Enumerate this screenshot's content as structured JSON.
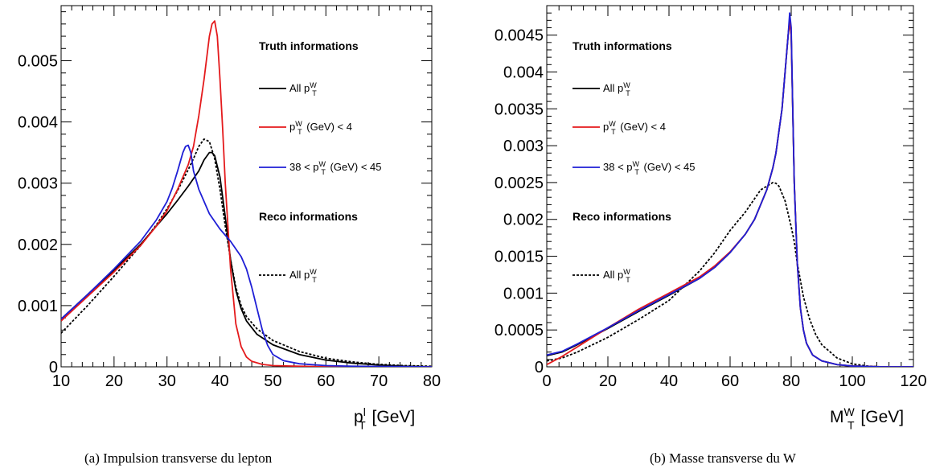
{
  "chart_data": [
    {
      "type": "line",
      "caption": "(a)   Impulsion transverse du lepton",
      "xlabel_main": "p",
      "xlabel_sup": "l",
      "xlabel_sub": "T",
      "xlabel_unit": " [GeV]",
      "xlim": [
        10,
        80
      ],
      "ylim": [
        0,
        0.0059
      ],
      "xticks": [
        10,
        20,
        30,
        40,
        50,
        60,
        70,
        80
      ],
      "yticks": [
        0,
        0.001,
        0.002,
        0.003,
        0.004,
        0.005
      ],
      "ytick_labels": [
        "0",
        "0.001",
        "0.002",
        "0.003",
        "0.004",
        "0.005"
      ],
      "legend_truth_header": "Truth informations",
      "legend_reco_header": "Reco informations",
      "series": [
        {
          "name_pre": "All p",
          "name_sup": "W",
          "name_sub": "T",
          "name_post": "",
          "color": "#000000",
          "style": "solid",
          "group": "truth",
          "x": [
            10,
            15,
            20,
            25,
            28,
            30,
            32,
            34,
            36,
            37,
            38,
            38.5,
            39,
            40,
            41,
            42,
            43,
            44,
            45,
            47,
            50,
            55,
            60,
            65,
            70,
            75,
            80
          ],
          "y": [
            0.00078,
            0.00118,
            0.00158,
            0.002,
            0.0023,
            0.0025,
            0.00272,
            0.00295,
            0.0032,
            0.00338,
            0.0035,
            0.0035,
            0.00345,
            0.0031,
            0.00245,
            0.00175,
            0.00125,
            0.00095,
            0.00075,
            0.00053,
            0.00036,
            0.0002,
            0.00011,
            6e-05,
            3e-05,
            1e-05,
            0.0
          ]
        },
        {
          "name_pre": "p",
          "name_sup": "W",
          "name_sub": "T",
          "name_post": " (GeV) < 4",
          "color": "#e41a1c",
          "style": "solid",
          "group": "truth",
          "x": [
            10,
            15,
            20,
            25,
            28,
            30,
            32,
            34,
            35,
            36,
            37,
            38,
            38.5,
            39,
            39.5,
            40,
            40.5,
            41,
            42,
            43,
            44,
            45,
            46,
            48,
            50,
            55,
            60,
            80
          ],
          "y": [
            0.00075,
            0.00115,
            0.00155,
            0.00198,
            0.0023,
            0.00255,
            0.0029,
            0.0033,
            0.0036,
            0.0041,
            0.0047,
            0.0054,
            0.0056,
            0.00565,
            0.0054,
            0.0047,
            0.0039,
            0.003,
            0.0016,
            0.0007,
            0.00033,
            0.00016,
            9e-05,
            4e-05,
            2e-05,
            1e-05,
            0.0,
            0.0
          ]
        },
        {
          "name_pre": "38 < p",
          "name_sup": "W",
          "name_sub": "T",
          "name_post": " (GeV) < 45",
          "color": "#1f1fd6",
          "style": "solid",
          "group": "truth",
          "x": [
            10,
            15,
            20,
            25,
            28,
            30,
            31,
            32,
            33,
            33.5,
            34,
            34.5,
            35,
            36,
            37,
            38,
            40,
            42,
            44,
            45,
            46,
            47,
            48,
            49,
            50,
            52,
            55,
            60,
            65,
            80
          ],
          "y": [
            0.00078,
            0.00118,
            0.0016,
            0.00205,
            0.0024,
            0.0027,
            0.00292,
            0.0032,
            0.0035,
            0.0036,
            0.00362,
            0.0035,
            0.0032,
            0.0029,
            0.0027,
            0.0025,
            0.00225,
            0.00205,
            0.0018,
            0.0016,
            0.0013,
            0.00095,
            0.0006,
            0.00035,
            0.0002,
            0.0001,
            5e-05,
            2e-05,
            1e-05,
            0.0
          ]
        },
        {
          "name_pre": "All p",
          "name_sup": "W",
          "name_sub": "T",
          "name_post": "",
          "color": "#000000",
          "style": "dashed",
          "group": "reco",
          "x": [
            10,
            15,
            20,
            25,
            28,
            30,
            32,
            34,
            35,
            36,
            37,
            38,
            39,
            40,
            41,
            42,
            43,
            44,
            45,
            47,
            50,
            55,
            60,
            65,
            70,
            75,
            80
          ],
          "y": [
            0.00055,
            0.001,
            0.00148,
            0.00198,
            0.00232,
            0.00258,
            0.00288,
            0.00322,
            0.0034,
            0.0036,
            0.00372,
            0.00368,
            0.0034,
            0.0029,
            0.0023,
            0.00175,
            0.0013,
            0.001,
            0.00082,
            0.00062,
            0.00043,
            0.00025,
            0.00014,
            8e-05,
            4e-05,
            2e-05,
            1e-05
          ]
        }
      ]
    },
    {
      "type": "line",
      "caption": "(b)   Masse transverse du W",
      "xlabel_main": "M",
      "xlabel_sup": "W",
      "xlabel_sub": "T",
      "xlabel_unit": " [GeV]",
      "xlim": [
        0,
        120
      ],
      "ylim": [
        0,
        0.0049
      ],
      "xticks": [
        0,
        20,
        40,
        60,
        80,
        100,
        120
      ],
      "yticks": [
        0,
        0.0005,
        0.001,
        0.0015,
        0.002,
        0.0025,
        0.003,
        0.0035,
        0.004,
        0.0045
      ],
      "ytick_labels": [
        "0",
        "0.0005",
        "0.001",
        "0.0015",
        "0.002",
        "0.0025",
        "0.003",
        "0.0035",
        "0.004",
        "0.0045"
      ],
      "legend_truth_header": "Truth informations",
      "legend_reco_header": "Reco informations",
      "series": [
        {
          "name_pre": "All p",
          "name_sup": "W",
          "name_sub": "T",
          "name_post": "",
          "color": "#000000",
          "style": "solid",
          "group": "truth",
          "x": [
            0,
            5,
            10,
            20,
            30,
            40,
            50,
            55,
            60,
            65,
            68,
            70,
            72,
            74,
            75,
            76,
            77,
            78,
            79,
            79.5,
            80,
            80.5,
            81,
            82,
            83,
            84,
            85,
            87,
            90,
            95,
            100,
            110,
            120
          ],
          "y": [
            0.00015,
            0.0002,
            0.0003,
            0.00052,
            0.00075,
            0.00097,
            0.0012,
            0.00135,
            0.00155,
            0.0018,
            0.002,
            0.0022,
            0.0024,
            0.0027,
            0.0029,
            0.0032,
            0.0035,
            0.004,
            0.0045,
            0.0047,
            0.0045,
            0.0035,
            0.0025,
            0.0014,
            0.0008,
            0.0005,
            0.00032,
            0.00016,
            8e-05,
            3e-05,
            1e-05,
            0.0,
            0.0
          ]
        },
        {
          "name_pre": "p",
          "name_sup": "W",
          "name_sub": "T",
          "name_post": " (GeV) < 4",
          "color": "#e41a1c",
          "style": "solid",
          "group": "truth",
          "x": [
            0,
            5,
            10,
            20,
            30,
            40,
            50,
            55,
            60,
            65,
            68,
            70,
            72,
            74,
            75,
            76,
            77,
            78,
            79,
            79.5,
            80,
            80.5,
            81,
            82,
            83,
            84,
            85,
            87,
            90,
            95,
            100,
            110,
            120
          ],
          "y": [
            3e-05,
            0.00014,
            0.00027,
            0.00053,
            0.00078,
            0.001,
            0.00122,
            0.00137,
            0.00156,
            0.0018,
            0.002,
            0.0022,
            0.0024,
            0.0027,
            0.0029,
            0.0032,
            0.0035,
            0.004,
            0.0045,
            0.00468,
            0.0045,
            0.0035,
            0.0025,
            0.0014,
            0.0008,
            0.0005,
            0.00032,
            0.00016,
            8e-05,
            3e-05,
            1e-05,
            0.0,
            0.0
          ]
        },
        {
          "name_pre": "38 < p",
          "name_sup": "W",
          "name_sub": "T",
          "name_post": " (GeV) < 45",
          "color": "#1f1fd6",
          "style": "solid",
          "group": "truth",
          "x": [
            0,
            5,
            10,
            20,
            30,
            40,
            50,
            55,
            60,
            65,
            68,
            70,
            72,
            74,
            75,
            76,
            77,
            78,
            79,
            79.5,
            80,
            80.5,
            81,
            82,
            83,
            84,
            85,
            87,
            90,
            95,
            100,
            110,
            120
          ],
          "y": [
            0.00016,
            0.00021,
            0.00031,
            0.00053,
            0.00076,
            0.00098,
            0.0012,
            0.00135,
            0.00155,
            0.0018,
            0.002,
            0.0022,
            0.0024,
            0.0027,
            0.0029,
            0.0032,
            0.0035,
            0.004,
            0.0045,
            0.0048,
            0.0046,
            0.0035,
            0.0025,
            0.0014,
            0.0008,
            0.0005,
            0.00032,
            0.00016,
            8e-05,
            3e-05,
            1e-05,
            0.0,
            0.0
          ]
        },
        {
          "name_pre": "All p",
          "name_sup": "W",
          "name_sub": "T",
          "name_post": "",
          "color": "#000000",
          "style": "dashed",
          "group": "reco",
          "x": [
            0,
            5,
            10,
            20,
            30,
            40,
            50,
            55,
            60,
            65,
            70,
            72,
            74,
            75,
            76,
            78,
            80,
            81,
            82,
            84,
            86,
            88,
            90,
            95,
            100,
            105,
            110,
            120
          ],
          "y": [
            8e-05,
            0.00012,
            0.0002,
            0.0004,
            0.00064,
            0.0009,
            0.0013,
            0.00155,
            0.00185,
            0.0021,
            0.0024,
            0.00245,
            0.0025,
            0.00249,
            0.00245,
            0.00225,
            0.0019,
            0.0017,
            0.0014,
            0.00095,
            0.00065,
            0.00044,
            0.0003,
            0.00012,
            4e-05,
            1e-05,
            0.0,
            0.0
          ]
        }
      ]
    }
  ]
}
